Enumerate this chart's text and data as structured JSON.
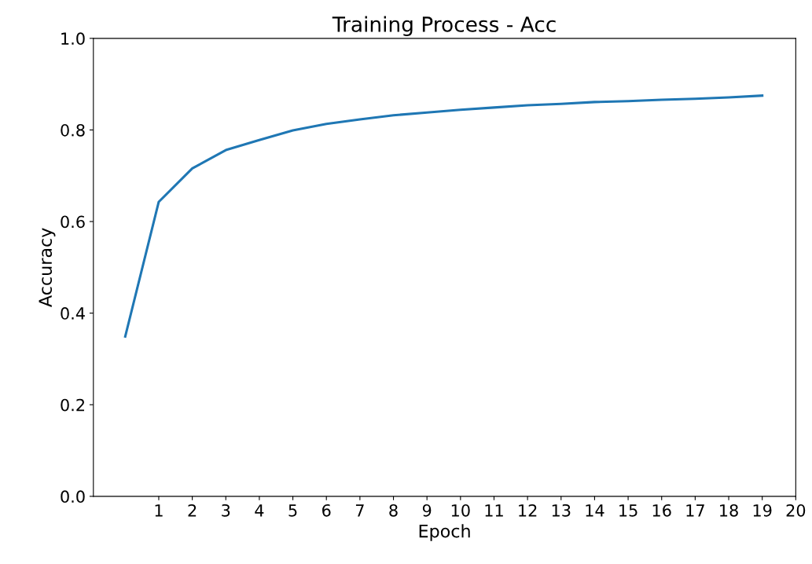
{
  "chart_data": {
    "type": "line",
    "title": "Training Process - Acc",
    "xlabel": "Epoch",
    "ylabel": "Accuracy",
    "x": [
      0,
      1,
      2,
      3,
      4,
      5,
      6,
      7,
      8,
      9,
      10,
      11,
      12,
      13,
      14,
      15,
      16,
      17,
      18,
      19
    ],
    "series": [
      {
        "color": "#1f77b4",
        "values": [
          0.349,
          0.643,
          0.716,
          0.756,
          0.778,
          0.799,
          0.813,
          0.823,
          0.832,
          0.838,
          0.844,
          0.849,
          0.854,
          0.857,
          0.861,
          0.863,
          0.866,
          0.868,
          0.871,
          0.875
        ]
      }
    ],
    "xlim": [
      -0.95,
      20
    ],
    "xticks": [
      1,
      2,
      3,
      4,
      5,
      6,
      7,
      8,
      9,
      10,
      11,
      12,
      13,
      14,
      15,
      16,
      17,
      18,
      19,
      20
    ],
    "ylim": [
      0,
      1
    ],
    "yticks": [
      {
        "value": 0,
        "label": "0.0"
      },
      0.2,
      0.4,
      0.6,
      0.8,
      {
        "value": 1,
        "label": "1.0"
      }
    ],
    "grid": false,
    "legend": false,
    "marker": "none",
    "line_style": "solid"
  }
}
